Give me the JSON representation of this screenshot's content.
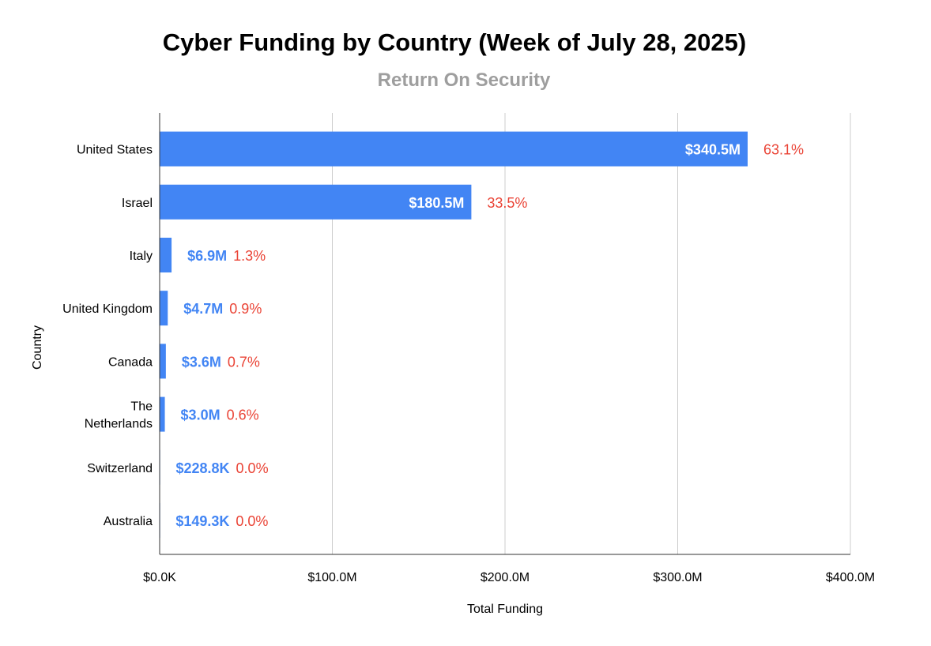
{
  "chart_data": {
    "type": "bar",
    "orientation": "horizontal",
    "title": "Cyber Funding by Country (Week of July 28, 2025)",
    "subtitle": "Return On Security",
    "xlabel": "Total Funding",
    "ylabel": "Country",
    "xlim": [
      0,
      400000000
    ],
    "x_ticks": [
      0,
      100000000,
      200000000,
      300000000,
      400000000
    ],
    "x_tick_labels": [
      "$0.0K",
      "$100.0M",
      "$200.0M",
      "$300.0M",
      "$400.0M"
    ],
    "grid": true,
    "categories": [
      [
        "United States"
      ],
      [
        "Israel"
      ],
      [
        "Italy"
      ],
      [
        "United Kingdom"
      ],
      [
        "Canada"
      ],
      [
        "The",
        "Netherlands"
      ],
      [
        "Switzerland"
      ],
      [
        "Australia"
      ]
    ],
    "values": [
      340500000,
      180500000,
      6900000,
      4700000,
      3600000,
      3000000,
      228800,
      149300
    ],
    "value_labels": [
      "$340.5M",
      "$180.5M",
      "$6.9M",
      "$4.7M",
      "$3.6M",
      "$3.0M",
      "$228.8K",
      "$149.3K"
    ],
    "percent_labels": [
      "63.1%",
      "33.5%",
      "1.3%",
      "0.9%",
      "0.7%",
      "0.6%",
      "0.0%",
      "0.0%"
    ],
    "colors": {
      "bar": "#4285f4",
      "value_label_inside": "#ffffff",
      "value_label_outside": "#4285f4",
      "percent_label": "#ea4335",
      "grid": "#cccccc",
      "axis": "#333333",
      "text": "#000000"
    }
  }
}
